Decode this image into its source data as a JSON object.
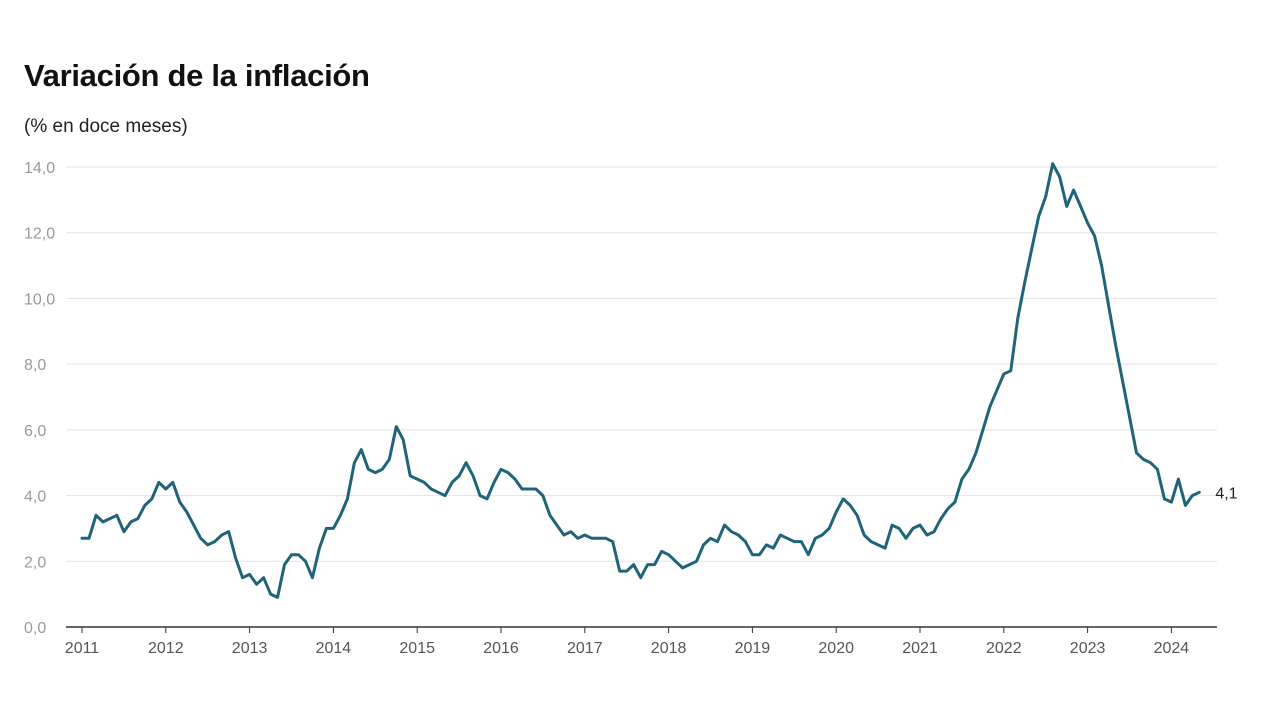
{
  "chart_data": {
    "type": "line",
    "title": "Variación de la inflación",
    "subtitle": "(% en doce meses)",
    "xlabel": "",
    "ylabel": "",
    "ylim": [
      0,
      14
    ],
    "yticks": [
      "0,0",
      "2,0",
      "4,0",
      "6,0",
      "8,0",
      "10,0",
      "12,0",
      "14,0"
    ],
    "ytick_values": [
      0,
      2,
      4,
      6,
      8,
      10,
      12,
      14
    ],
    "xticks": [
      "2011",
      "2012",
      "2013",
      "2014",
      "2015",
      "2016",
      "2017",
      "2018",
      "2019",
      "2020",
      "2021",
      "2022",
      "2023",
      "2024"
    ],
    "grid": "horizontal",
    "legend": "none",
    "line_color": "#1f6478",
    "end_label": "4,1",
    "series": [
      {
        "start": "2011-01",
        "frequency": "monthly",
        "values": [
          2.7,
          2.7,
          3.4,
          3.2,
          3.3,
          3.4,
          2.9,
          3.2,
          3.3,
          3.7,
          3.9,
          4.4,
          4.2,
          4.4,
          3.8,
          3.5,
          3.1,
          2.7,
          2.5,
          2.6,
          2.8,
          2.9,
          2.1,
          1.5,
          1.6,
          1.3,
          1.5,
          1.0,
          0.9,
          1.9,
          2.2,
          2.2,
          2.0,
          1.5,
          2.4,
          3.0,
          3.0,
          3.4,
          3.9,
          5.0,
          5.4,
          4.8,
          4.7,
          4.8,
          5.1,
          6.1,
          5.7,
          4.6,
          4.5,
          4.4,
          4.2,
          4.1,
          4.0,
          4.4,
          4.6,
          5.0,
          4.6,
          4.0,
          3.9,
          4.4,
          4.8,
          4.7,
          4.5,
          4.2,
          4.2,
          4.2,
          4.0,
          3.4,
          3.1,
          2.8,
          2.9,
          2.7,
          2.8,
          2.7,
          2.7,
          2.7,
          2.6,
          1.7,
          1.7,
          1.9,
          1.5,
          1.9,
          1.9,
          2.3,
          2.2,
          2.0,
          1.8,
          1.9,
          2.0,
          2.5,
          2.7,
          2.6,
          3.1,
          2.9,
          2.8,
          2.6,
          2.2,
          2.2,
          2.5,
          2.4,
          2.8,
          2.7,
          2.6,
          2.6,
          2.2,
          2.7,
          2.8,
          3.0,
          3.5,
          3.9,
          3.7,
          3.4,
          2.8,
          2.6,
          2.5,
          2.4,
          3.1,
          3.0,
          2.7,
          3.0,
          3.1,
          2.8,
          2.9,
          3.3,
          3.6,
          3.8,
          4.5,
          4.8,
          5.3,
          6.0,
          6.7,
          7.2,
          7.7,
          7.8,
          9.4,
          10.5,
          11.5,
          12.5,
          13.1,
          14.1,
          13.7,
          12.8,
          13.3,
          12.8,
          12.3,
          11.9,
          11.0,
          9.8,
          8.6,
          7.5,
          6.4,
          5.3,
          5.1,
          5.0,
          4.8,
          3.9,
          3.8,
          4.5,
          3.7,
          4.0,
          4.1
        ]
      }
    ]
  }
}
